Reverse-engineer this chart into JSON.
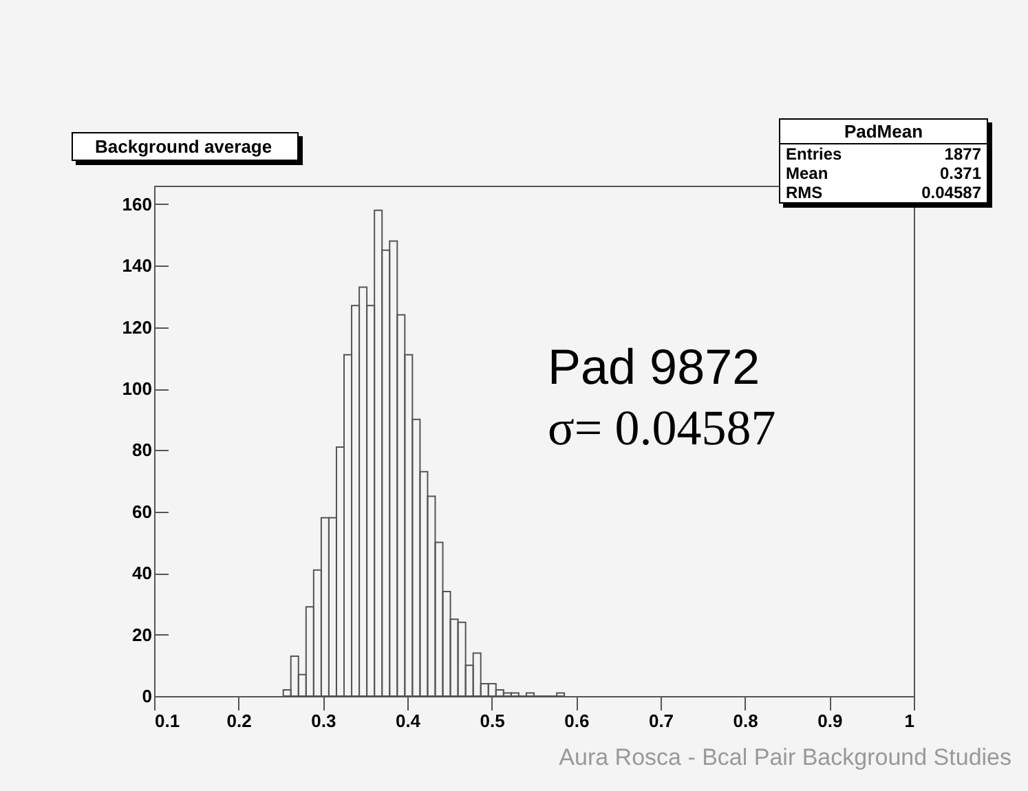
{
  "chart_data": {
    "type": "histogram",
    "title": "Background average",
    "legend_title": "PadMean",
    "bins": [
      0.253,
      0.262,
      0.271,
      0.28,
      0.289,
      0.298,
      0.307,
      0.316,
      0.325,
      0.334,
      0.343,
      0.352,
      0.361,
      0.37,
      0.379,
      0.388,
      0.397,
      0.406,
      0.415,
      0.424,
      0.433,
      0.442,
      0.451,
      0.46,
      0.469,
      0.478,
      0.487,
      0.496,
      0.505,
      0.514,
      0.523,
      0.532,
      0.541,
      0.55,
      0.559,
      0.568,
      0.577,
      0.586
    ],
    "values": [
      2,
      13,
      7,
      29,
      41,
      58,
      58,
      81,
      111,
      127,
      133,
      127,
      158,
      145,
      148,
      124,
      111,
      90,
      73,
      65,
      50,
      34,
      25,
      24,
      10,
      14,
      4,
      4,
      2,
      1,
      1,
      0,
      1,
      0,
      0,
      0,
      1
    ],
    "color": "#555555",
    "xlim": [
      0.1,
      1
    ],
    "xticks": [
      0.1,
      0.2,
      0.3,
      0.4,
      0.5,
      0.6,
      0.7,
      0.8,
      0.9,
      1
    ],
    "ylim": [
      0,
      166
    ],
    "yticks": [
      0,
      20,
      40,
      60,
      80,
      100,
      120,
      140,
      160
    ],
    "grid": false,
    "annotations": [
      "Entries",
      "1877",
      "Mean",
      "0.371",
      "RMS",
      "0.04587",
      "Pad 9872",
      "σ= 0.04587",
      "Aura Rosca - Bcal Pair Background Studies"
    ]
  }
}
